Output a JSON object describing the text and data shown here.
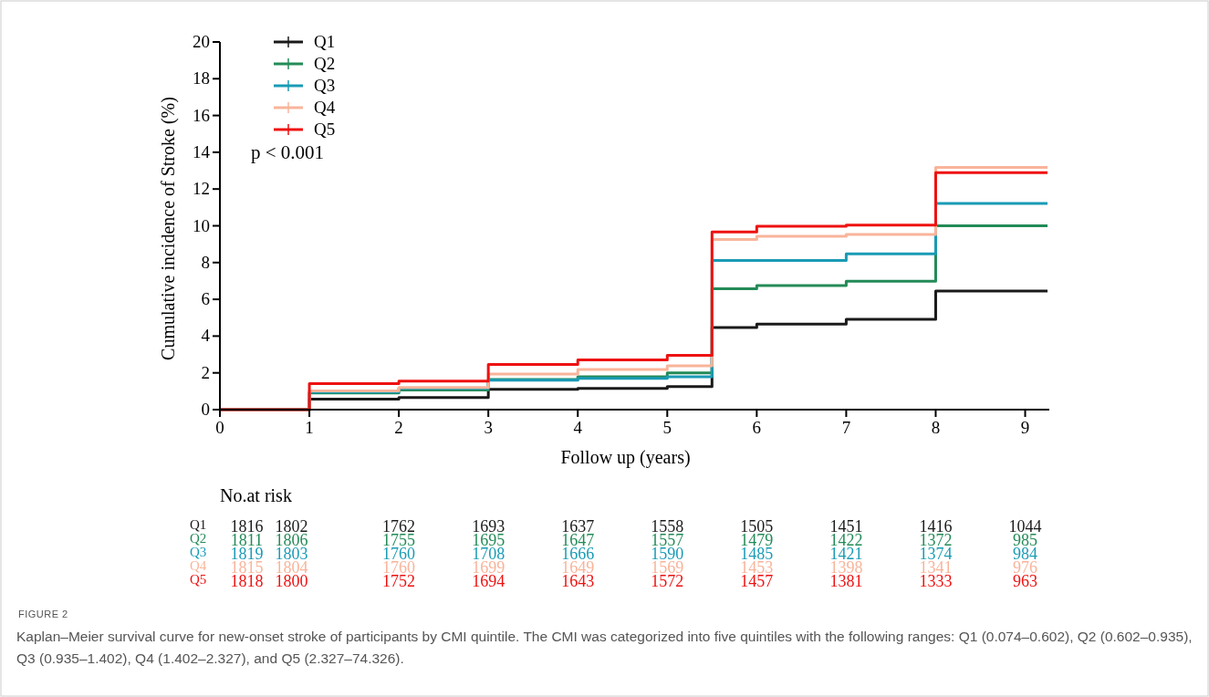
{
  "chart_data": {
    "type": "step",
    "xlabel": "Follow up (years)",
    "ylabel": "Cumulative incidence of Stroke (%)",
    "x": [
      0,
      1,
      2,
      3,
      4,
      5,
      5.5,
      6,
      7,
      8,
      9.25
    ],
    "series": [
      {
        "name": "Q1",
        "color": "#1a1a1a",
        "values": [
          0,
          0.57,
          0.66,
          1.1,
          1.16,
          1.25,
          4.47,
          4.65,
          4.91,
          6.45,
          6.45
        ]
      },
      {
        "name": "Q2",
        "color": "#238b57",
        "values": [
          0,
          0.9,
          1.07,
          1.64,
          1.79,
          2.0,
          6.58,
          6.75,
          6.98,
          10.0,
          10.0
        ]
      },
      {
        "name": "Q3",
        "color": "#1a9bb5",
        "values": [
          0,
          0.95,
          1.16,
          1.6,
          1.7,
          1.79,
          8.12,
          8.12,
          8.47,
          11.22,
          11.22
        ]
      },
      {
        "name": "Q4",
        "color": "#f9b49a",
        "values": [
          0,
          1.02,
          1.2,
          1.93,
          2.18,
          2.38,
          9.26,
          9.43,
          9.53,
          13.18,
          13.18
        ]
      },
      {
        "name": "Q5",
        "color": "#ee1111",
        "values": [
          0,
          1.41,
          1.55,
          2.46,
          2.71,
          2.95,
          9.66,
          9.97,
          10.04,
          12.89,
          12.89
        ]
      }
    ],
    "xlim": [
      0,
      9.27
    ],
    "ylim": [
      0,
      20
    ],
    "xticks": [
      0,
      1,
      2,
      3,
      4,
      5,
      6,
      7,
      8,
      9
    ],
    "yticks": [
      0,
      2,
      4,
      6,
      8,
      10,
      12,
      14,
      16,
      18,
      20
    ],
    "legend": "top left",
    "grid": false,
    "annotations": [
      "p < 0.001",
      "No.at risk",
      "1816",
      "1802",
      "1762",
      "1693",
      "1637",
      "1558",
      "1505",
      "1451",
      "1416",
      "1044",
      "1811",
      "1806",
      "1755",
      "1695",
      "1647",
      "1557",
      "1479",
      "1422",
      "1372",
      "985",
      "1819",
      "1803",
      "1760",
      "1708",
      "1666",
      "1590",
      "1485",
      "1421",
      "1374",
      "984",
      "1815",
      "1804",
      "1760",
      "1699",
      "1649",
      "1569",
      "1453",
      "1398",
      "1341",
      "976",
      "1818",
      "1800",
      "1752",
      "1694",
      "1643",
      "1572",
      "1457",
      "1381",
      "1333",
      "963",
      "FIGURE 2",
      "Kaplan–Meier survival curve for new-onset stroke of participants by CMI quintile. The CMI was categorized into five quintiles with the following ranges: Q1 (0.074–0.602), Q2 (0.602–0.935), Q3 (0.935–1.402), Q4 (1.402–2.327), and Q5 (2.327–74.326)."
    ]
  }
}
